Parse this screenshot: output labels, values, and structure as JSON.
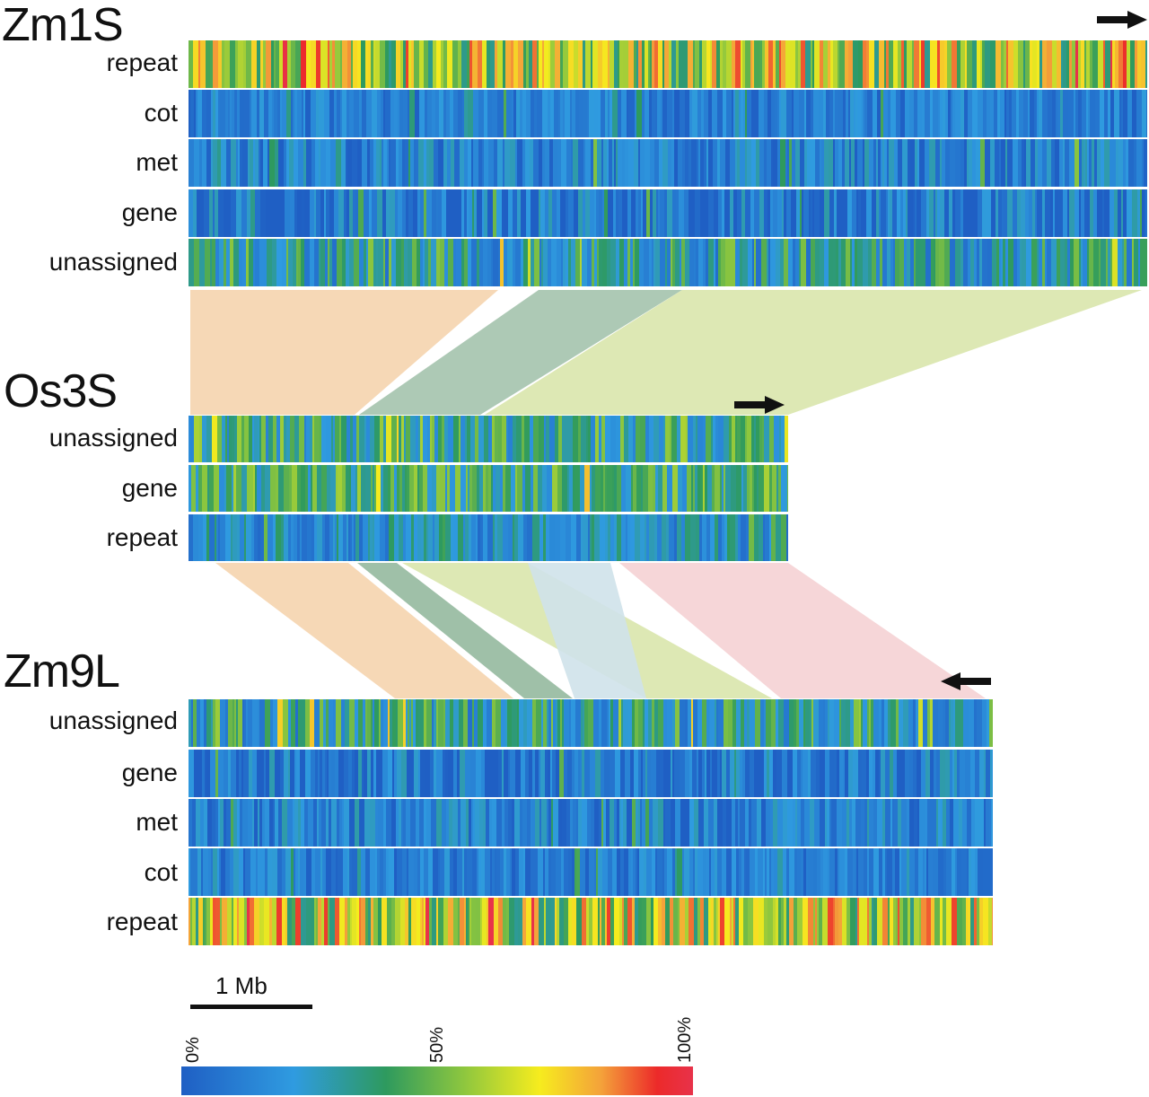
{
  "panels": [
    {
      "name": "Zm1S",
      "direction": "right",
      "tracks": [
        "repeat",
        "cot",
        "met",
        "gene",
        "unassigned"
      ]
    },
    {
      "name": "Os3S",
      "direction": "right",
      "tracks": [
        "unassigned",
        "gene",
        "repeat"
      ]
    },
    {
      "name": "Zm9L",
      "direction": "left",
      "tracks": [
        "unassigned",
        "gene",
        "met",
        "cot",
        "repeat"
      ]
    }
  ],
  "scale_bar": {
    "label": "1 Mb"
  },
  "legend": {
    "ticks": [
      "0%",
      "50%",
      "100%"
    ],
    "colors": [
      "#1f63c6",
      "#2f9be0",
      "#2e9a5e",
      "#8cc63f",
      "#f6ec1e",
      "#f4a23a",
      "#ec2a2a"
    ]
  },
  "synteny_colors": {
    "orange": "#f6d8b6",
    "dark_green": "#9fc0a8",
    "light_green": "#dde8b4",
    "light_blue": "#cfe2ea",
    "pink": "#f6d6d8"
  }
}
